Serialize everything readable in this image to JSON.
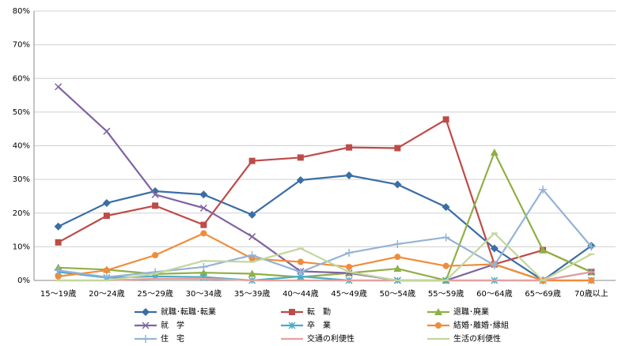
{
  "chart_data": {
    "type": "line",
    "categories": [
      "15～19歳",
      "20～24歳",
      "25～29歳",
      "30～34歳",
      "35～39歳",
      "40～44歳",
      "45～49歳",
      "50～54歳",
      "55～59歳",
      "60～64歳",
      "65～69歳",
      "70歳以上"
    ],
    "series": [
      {
        "name": "就職･転職･転業",
        "color": "#3a6ea5",
        "marker": "diamond",
        "values": [
          16,
          23,
          26.5,
          25.5,
          19.5,
          29.8,
          31.2,
          28.5,
          21.8,
          9.5,
          0,
          10.3
        ]
      },
      {
        "name": "転　勤",
        "color": "#be4b48",
        "marker": "square",
        "values": [
          11.3,
          19.2,
          22.2,
          16.5,
          35.5,
          36.5,
          39.5,
          39.3,
          47.8,
          4.8,
          9,
          2.5
        ]
      },
      {
        "name": "退職･廃業",
        "color": "#8fb046",
        "marker": "triangle",
        "values": [
          3.8,
          3.2,
          1.9,
          2.3,
          2.0,
          1.0,
          2.2,
          3.5,
          0,
          38,
          9,
          2.5
        ]
      },
      {
        "name": "就　学",
        "color": "#7f64a2",
        "marker": "x",
        "values": [
          57.5,
          44.3,
          25.5,
          21.5,
          13,
          2.7,
          2.2,
          0,
          0,
          4.8,
          0,
          2.5
        ]
      },
      {
        "name": "卒　業",
        "color": "#4bacc6",
        "marker": "star",
        "values": [
          2.5,
          0.8,
          1.2,
          1.0,
          0,
          1.2,
          0,
          0,
          0,
          0,
          0,
          0
        ]
      },
      {
        "name": "結婚･離婚･縁組",
        "color": "#f08c3a",
        "marker": "circle",
        "values": [
          1.2,
          3.0,
          7.5,
          14,
          6.5,
          5.5,
          4.0,
          7.0,
          4.3,
          4.8,
          0,
          0
        ]
      },
      {
        "name": "住　宅",
        "color": "#95b3d7",
        "marker": "plus",
        "values": [
          3.0,
          1.0,
          2.5,
          4.0,
          7.5,
          2.5,
          8.2,
          10.8,
          12.8,
          4.5,
          27,
          10
        ]
      },
      {
        "name": "交通の利便性",
        "color": "#e6a1a0",
        "marker": "dash",
        "values": [
          0,
          0,
          0.5,
          0.5,
          0,
          0,
          0,
          0,
          0,
          0,
          0,
          2.5
        ]
      },
      {
        "name": "生活の利便性",
        "color": "#c3d69b",
        "marker": "dash",
        "values": [
          0,
          0,
          2.0,
          5.8,
          5.5,
          9.5,
          2.5,
          0,
          0,
          14,
          0,
          7.8
        ]
      }
    ],
    "ylim": [
      0,
      80
    ],
    "yticks": [
      {
        "value": 0,
        "label": "0%"
      },
      {
        "value": 10,
        "label": "10%"
      },
      {
        "value": 20,
        "label": "20%"
      },
      {
        "value": 30,
        "label": "30%"
      },
      {
        "value": 40,
        "label": "40%"
      },
      {
        "value": 50,
        "label": "50%"
      },
      {
        "value": 60,
        "label": "60%"
      },
      {
        "value": 70,
        "label": "70%"
      },
      {
        "value": 80,
        "label": "80%"
      }
    ],
    "grid": true,
    "legend": "bottom"
  }
}
